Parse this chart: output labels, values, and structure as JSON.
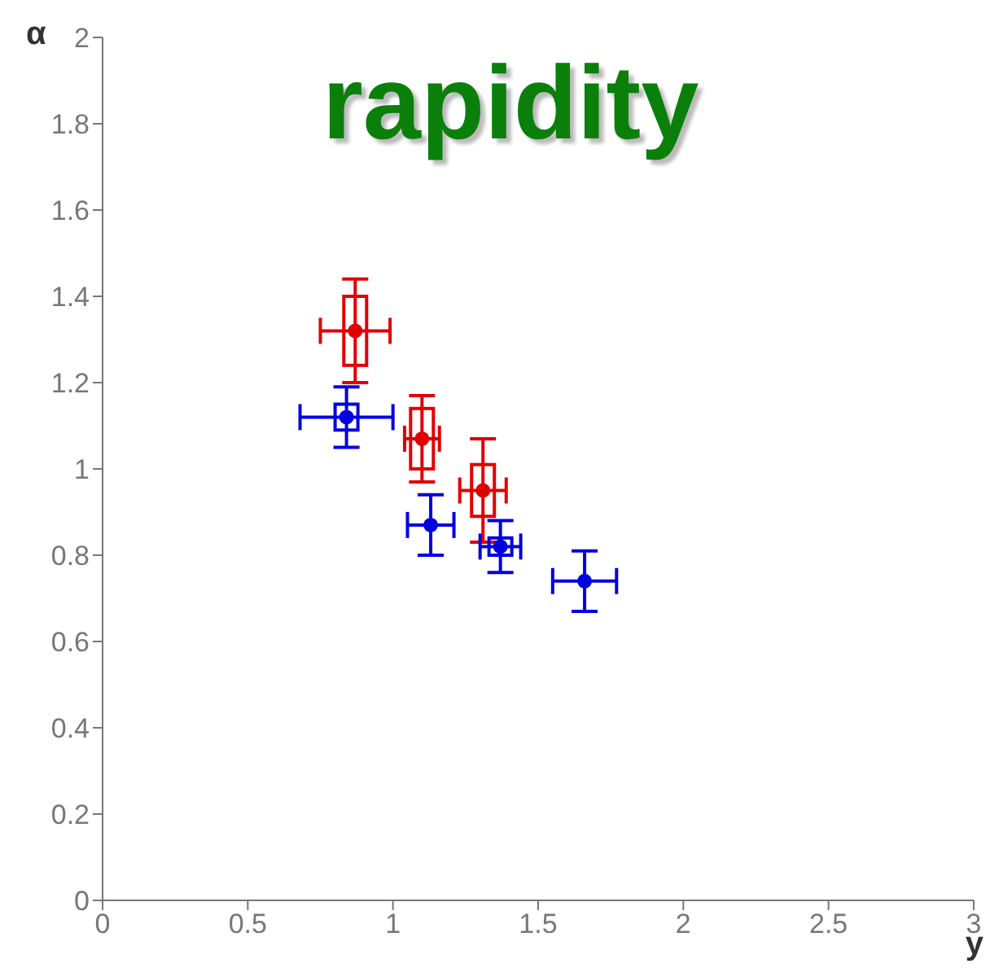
{
  "chart_data": {
    "type": "scatter",
    "title": "rapidity",
    "xlabel": "y",
    "ylabel": "α",
    "xlim": [
      0,
      3
    ],
    "ylim": [
      0,
      2
    ],
    "xticks": [
      0,
      0.5,
      1,
      1.5,
      2,
      2.5,
      3
    ],
    "yticks": [
      0,
      0.2,
      0.4,
      0.6,
      0.8,
      1,
      1.2,
      1.4,
      1.6,
      1.8,
      2
    ],
    "grid": false,
    "legend": false,
    "marker": "circle",
    "series": [
      {
        "color": "#e00000",
        "x": [
          0.87,
          1.1,
          1.31
        ],
        "values": [
          1.32,
          1.07,
          0.95
        ],
        "errors": [
          0.12,
          0.1,
          0.12
        ],
        "xerrors": [
          0.12,
          0.06,
          0.08
        ]
      },
      {
        "color": "#0000e0",
        "x": [
          0.84,
          1.13,
          1.37,
          1.66
        ],
        "values": [
          1.12,
          0.87,
          0.82,
          0.74
        ],
        "errors": [
          0.07,
          0.07,
          0.06,
          0.07
        ],
        "xerrors": [
          0.16,
          0.08,
          0.07,
          0.11
        ]
      },
      {
        "type": "bar",
        "color": "#e00000",
        "x": [
          0.87,
          1.1,
          1.31
        ],
        "base": [
          1.24,
          1.0,
          0.89
        ],
        "values": [
          0.16,
          0.14,
          0.12
        ]
      },
      {
        "type": "bar",
        "color": "#0000e0",
        "x": [
          0.84,
          1.37
        ],
        "base": [
          1.09,
          0.8
        ],
        "values": [
          0.06,
          0.04
        ]
      }
    ]
  }
}
